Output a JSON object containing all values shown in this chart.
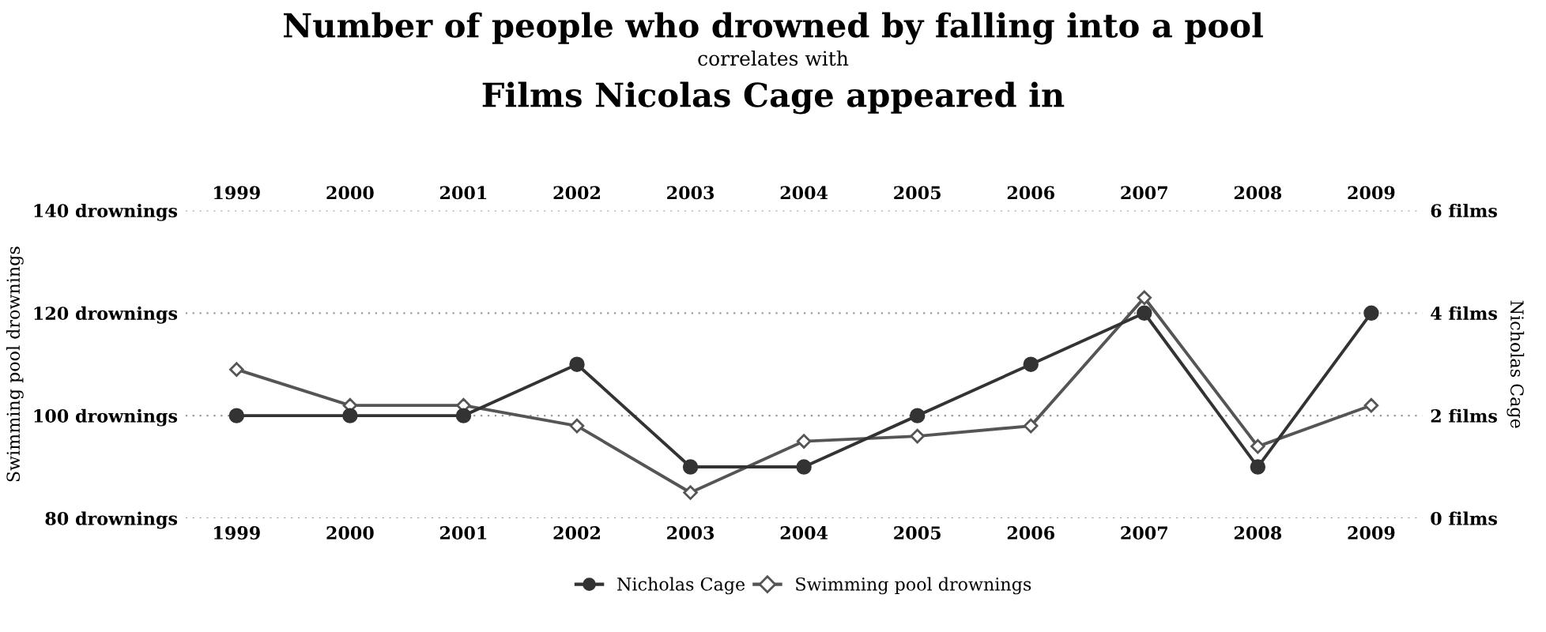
{
  "chart_data": {
    "type": "line",
    "title": "Number of people who drowned by falling into a pool",
    "subtitle": "correlates with",
    "annotations": [
      "Films Nicolas Cage appeared in"
    ],
    "ylabel": "Swimming pool drownings",
    "y2label": "Nicholas Cage",
    "x": [
      1999,
      2000,
      2001,
      2002,
      2003,
      2004,
      2005,
      2006,
      2007,
      2008,
      2009
    ],
    "xlim": [
      1998.55,
      2009.45
    ],
    "xticks": [
      1999,
      2000,
      2001,
      2002,
      2003,
      2004,
      2005,
      2006,
      2007,
      2008,
      2009
    ],
    "x2lim": [
      1998.55,
      2009.45
    ],
    "x2ticks": [
      1999,
      2000,
      2001,
      2002,
      2003,
      2004,
      2005,
      2006,
      2007,
      2008,
      2009
    ],
    "ylim": [
      80,
      140
    ],
    "yticks": [
      {
        "value": 80,
        "label": "80 drownings"
      },
      {
        "value": 100,
        "label": "100 drownings"
      },
      {
        "value": 120,
        "label": "120 drownings"
      },
      {
        "value": 140,
        "label": "140 drownings"
      }
    ],
    "y2lim": [
      0,
      6
    ],
    "y2ticks": [
      {
        "value": 0,
        "label": "0 films"
      },
      {
        "value": 2,
        "label": "2 films"
      },
      {
        "value": 4,
        "label": "4 films"
      },
      {
        "value": 6,
        "label": "6 films"
      }
    ],
    "series": [
      {
        "name": "Nicholas Cage",
        "color": "#333333",
        "axis": "y2",
        "marker": "circle",
        "values": [
          2,
          2,
          2,
          3,
          1,
          1,
          2,
          3,
          4,
          1,
          4
        ]
      },
      {
        "name": "Swimming pool drownings",
        "color": "#555555",
        "axis": "y",
        "marker": "diamond",
        "values": [
          109,
          102,
          102,
          98,
          85,
          95,
          96,
          98,
          123,
          94,
          102
        ]
      }
    ],
    "grid": "y",
    "legend": "bottom"
  }
}
